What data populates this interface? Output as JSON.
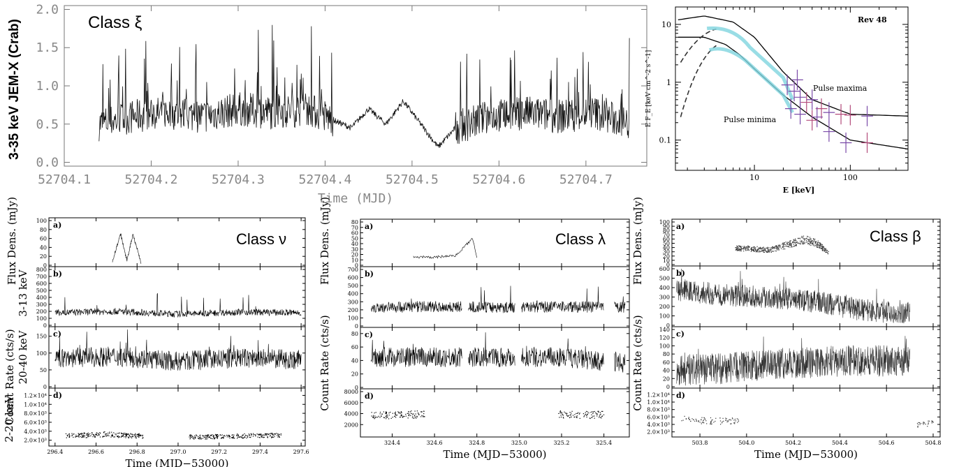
{
  "chart_data": [
    {
      "type": "line",
      "annotation": "Class ξ",
      "xlabel": "Time (MJD)",
      "ylabel": "3-35 keV JEM-X (Crab)",
      "x_ticks": [
        "52704.1",
        "52704.2",
        "52704.3",
        "52704.4",
        "52704.5",
        "52704.6",
        "52704.7"
      ],
      "y_ticks": [
        "0.0",
        "0.5",
        "1.0",
        "1.5",
        "2.0"
      ],
      "xlim": [
        52704.1,
        52704.77
      ],
      "ylim": [
        -0.05,
        2.05
      ],
      "series": [
        {
          "x": [
            52704.14,
            52704.18,
            52704.22,
            52704.26,
            52704.3,
            52704.34,
            52704.38,
            52704.41,
            52704.43,
            52704.45,
            52704.47,
            52704.49,
            52704.51,
            52704.53,
            52704.55,
            52704.59,
            52704.63,
            52704.67,
            52704.71,
            52704.75
          ],
          "y": [
            0.5,
            0.6,
            0.65,
            0.6,
            0.7,
            0.65,
            0.7,
            0.55,
            0.45,
            0.7,
            0.5,
            0.8,
            0.5,
            0.2,
            0.45,
            0.6,
            0.65,
            0.6,
            0.65,
            0.5
          ]
        }
      ]
    },
    {
      "type": "scatter",
      "annotation": "Rev 48",
      "xlabel": "E [keV]",
      "ylabel": "E F_E [keV cm^-2 s^-1]",
      "x_scale": "log",
      "y_scale": "log",
      "x_ticks": [
        "10",
        "100"
      ],
      "y_ticks": [
        "10",
        "1",
        "0.1"
      ],
      "xlim": [
        1.5,
        400
      ],
      "ylim": [
        0.03,
        20
      ],
      "labels": [
        "Pulse maxima",
        "Pulse minima"
      ],
      "series": [
        {
          "x": [
            1.6,
            3,
            6,
            10,
            20,
            40,
            100,
            400
          ],
          "y": [
            12,
            14,
            11,
            6,
            1.5,
            0.5,
            0.28,
            0.26
          ]
        },
        {
          "x": [
            1.6,
            3,
            5,
            7,
            10,
            20,
            40,
            100,
            400
          ],
          "y": [
            6,
            6,
            4.5,
            3,
            1.7,
            0.6,
            0.25,
            0.1,
            0.07
          ]
        }
      ]
    },
    {
      "type": "line",
      "annotation": "Class ν",
      "xlabel": "Time (MJD−53000)",
      "x_ticks": [
        "296.4",
        "296.6",
        "296.8",
        "297.0",
        "297.2",
        "297.4",
        "297.6"
      ],
      "xlim": [
        296.37,
        297.62
      ],
      "panels": [
        {
          "tag": "a)",
          "ylabel": "Flux Dens. (mJy)",
          "y_ticks": [
            "0",
            "20",
            "40",
            "60",
            "80",
            "100"
          ],
          "ylim": [
            0,
            100
          ],
          "x": [
            296.68,
            296.72,
            296.75,
            296.78,
            296.82
          ],
          "y": [
            10,
            70,
            10,
            70,
            5
          ]
        },
        {
          "tag": "b)",
          "ylabel": "3-13 keV",
          "y_ticks": [
            "0",
            "100",
            "200",
            "300",
            "400",
            "500",
            "600",
            "700",
            "800"
          ],
          "ylim": [
            0,
            800
          ],
          "x": [
            296.4,
            296.7,
            297.0,
            297.3,
            297.6
          ],
          "y": [
            180,
            200,
            160,
            190,
            180
          ]
        },
        {
          "tag": "c)",
          "ylabel": "20-40 keV",
          "y_ticks": [
            "0",
            "50",
            "100",
            "150"
          ],
          "ylim": [
            0,
            170
          ],
          "x": [
            296.4,
            296.7,
            297.0,
            297.3,
            297.6
          ],
          "y": [
            85,
            90,
            75,
            85,
            80
          ]
        },
        {
          "tag": "d)",
          "ylabel": "2-20 keV",
          "y_ticks": [
            "2.0×10³",
            "4.0×10³",
            "6.0×10³",
            "8.0×10³",
            "1.0×10⁴",
            "1.2×10⁴"
          ],
          "ylim": [
            1000,
            13000
          ],
          "x": [
            296.45,
            296.55,
            296.65,
            296.75,
            297.1,
            297.3,
            297.5
          ],
          "y": [
            3000,
            3200,
            3400,
            3100,
            2800,
            3000,
            3200
          ]
        }
      ],
      "shared_ylabel": "Count Rate (cts/s)"
    },
    {
      "type": "line",
      "annotation": "Class λ",
      "xlabel": "Time (MJD−53000)",
      "x_ticks": [
        "324.4",
        "324.6",
        "324.8",
        "325.0",
        "325.2",
        "325.4"
      ],
      "xlim": [
        324.25,
        325.52
      ],
      "panels": [
        {
          "tag": "a)",
          "ylabel": "Flux Dens. (mJy)",
          "y_ticks": [
            "0",
            "10",
            "20",
            "30",
            "40",
            "50",
            "60",
            "70",
            "80"
          ],
          "ylim": [
            0,
            80
          ],
          "x": [
            324.5,
            324.6,
            324.7,
            324.78,
            324.8
          ],
          "y": [
            15,
            15,
            18,
            50,
            15
          ]
        },
        {
          "tag": "b)",
          "y_ticks": [
            "0",
            "100",
            "200",
            "300",
            "400",
            "500",
            "600",
            "700"
          ],
          "ylim": [
            0,
            700
          ],
          "x": [
            324.3,
            324.6,
            324.9,
            325.2,
            325.5
          ],
          "y": [
            230,
            240,
            230,
            240,
            230
          ]
        },
        {
          "tag": "c)",
          "y_ticks": [
            "0",
            "20",
            "40",
            "60",
            "80"
          ],
          "ylim": [
            0,
            85
          ],
          "x": [
            324.3,
            324.6,
            324.9,
            325.2,
            325.5
          ],
          "y": [
            45,
            45,
            45,
            45,
            35
          ]
        },
        {
          "tag": "d)",
          "y_ticks": [
            "2000",
            "4000",
            "6000",
            "8000"
          ],
          "ylim": [
            0,
            8000
          ],
          "x": [
            324.3,
            324.4,
            324.5,
            325.2,
            325.3,
            325.4
          ],
          "y": [
            3800,
            3800,
            3900,
            3900,
            3800,
            3900
          ]
        }
      ],
      "shared_ylabel": "Count Rate (cts/s)"
    },
    {
      "type": "line",
      "annotation": "Class β",
      "xlabel": "Time (MJD−53000)",
      "x_ticks": [
        "503.8",
        "504.0",
        "504.2",
        "504.4",
        "504.6",
        "504.8"
      ],
      "xlim": [
        503.68,
        504.83
      ],
      "panels": [
        {
          "tag": "a)",
          "ylabel": "Flux Dens. (mJy)",
          "y_ticks": [
            "0",
            "10",
            "20",
            "30",
            "40",
            "50",
            "60",
            "70",
            "80",
            "90",
            "100"
          ],
          "ylim": [
            0,
            100
          ],
          "x": [
            503.95,
            504.1,
            504.25,
            504.3,
            504.35
          ],
          "y": [
            40,
            35,
            60,
            50,
            30
          ]
        },
        {
          "tag": "b)",
          "y_ticks": [
            "0",
            "100",
            "200",
            "300",
            "400",
            "500",
            "600"
          ],
          "ylim": [
            0,
            600
          ],
          "x": [
            503.7,
            503.9,
            504.1,
            504.3,
            504.5,
            504.7
          ],
          "y": [
            380,
            320,
            300,
            250,
            160,
            130
          ]
        },
        {
          "tag": "c)",
          "y_ticks": [
            "0",
            "20",
            "40",
            "60",
            "80",
            "100",
            "120",
            "140"
          ],
          "ylim": [
            0,
            140
          ],
          "x": [
            503.7,
            503.9,
            504.1,
            504.3,
            504.5,
            504.7
          ],
          "y": [
            40,
            45,
            55,
            60,
            65,
            60
          ]
        },
        {
          "tag": "d)",
          "y_ticks": [
            "2.0×10³",
            "4.0×10³",
            "6.0×10³",
            "8.0×10³",
            "1.0×10⁴",
            "1.2×10⁴"
          ],
          "ylim": [
            1000,
            13000
          ],
          "x": [
            503.72,
            503.8,
            503.88,
            503.95,
            504.75,
            504.8
          ],
          "y": [
            5500,
            5200,
            5000,
            5200,
            4000,
            4500
          ]
        }
      ],
      "shared_ylabel": "Count Rate (cts/s)"
    }
  ]
}
